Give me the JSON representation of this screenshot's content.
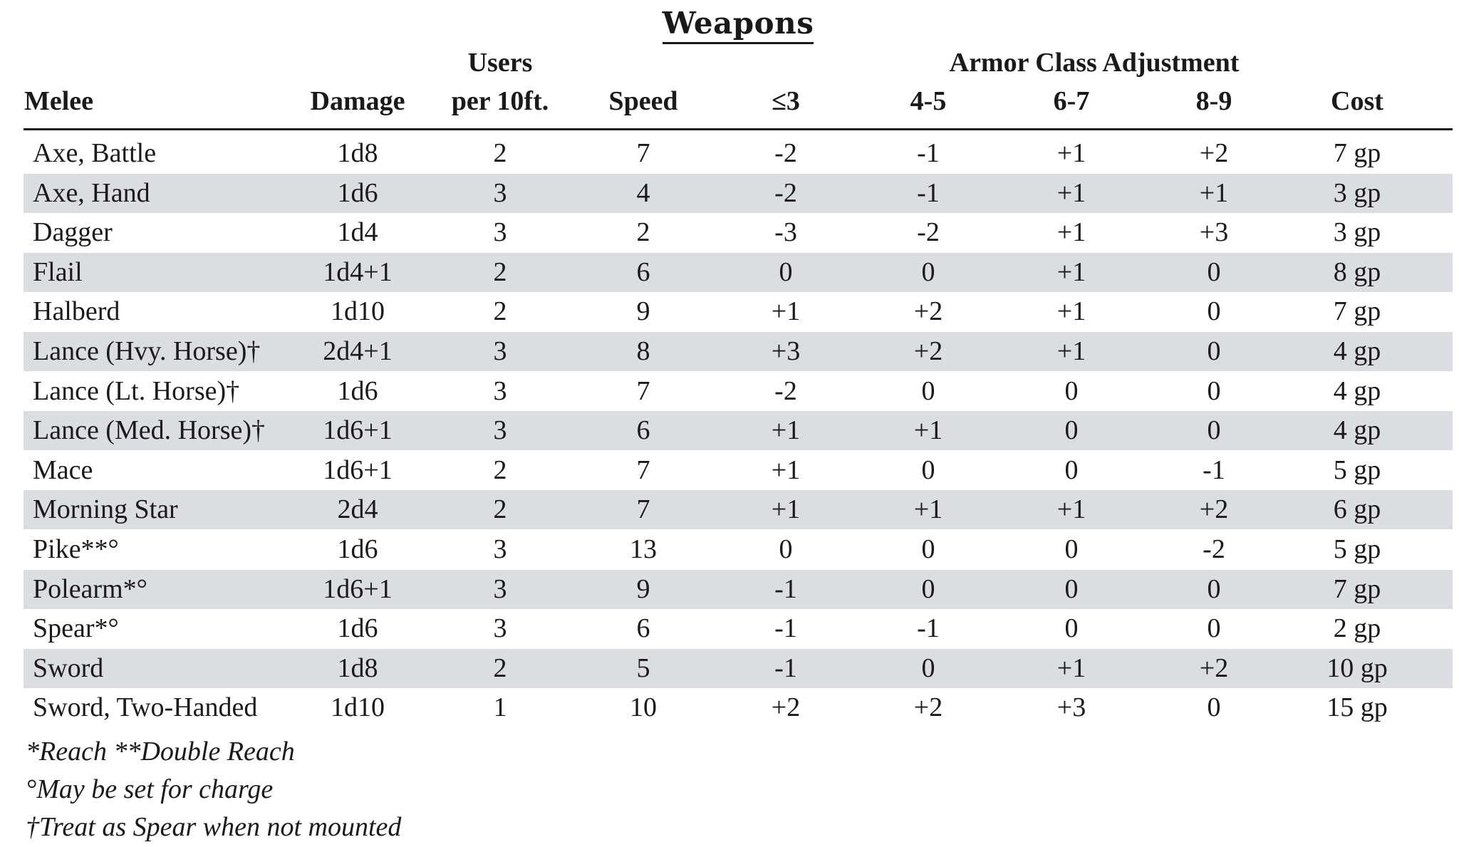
{
  "title": "Weapons",
  "header": {
    "group_users": "Users",
    "group_ac": "Armor Class Adjustment",
    "columns": [
      "Melee",
      "Damage",
      "per 10ft.",
      "Speed",
      "≤3",
      "4-5",
      "6-7",
      "8-9",
      "Cost"
    ]
  },
  "rows": [
    {
      "name": "Axe, Battle",
      "damage": "1d8",
      "users": "2",
      "speed": "7",
      "ac3": "-2",
      "ac45": "-1",
      "ac67": "+1",
      "ac89": "+2",
      "cost": "7 gp"
    },
    {
      "name": "Axe, Hand",
      "damage": "1d6",
      "users": "3",
      "speed": "4",
      "ac3": "-2",
      "ac45": "-1",
      "ac67": "+1",
      "ac89": "+1",
      "cost": "3 gp"
    },
    {
      "name": "Dagger",
      "damage": "1d4",
      "users": "3",
      "speed": "2",
      "ac3": "-3",
      "ac45": "-2",
      "ac67": "+1",
      "ac89": "+3",
      "cost": "3 gp"
    },
    {
      "name": "Flail",
      "damage": "1d4+1",
      "users": "2",
      "speed": "6",
      "ac3": "0",
      "ac45": "0",
      "ac67": "+1",
      "ac89": "0",
      "cost": "8 gp"
    },
    {
      "name": "Halberd",
      "damage": "1d10",
      "users": "2",
      "speed": "9",
      "ac3": "+1",
      "ac45": "+2",
      "ac67": "+1",
      "ac89": "0",
      "cost": "7 gp"
    },
    {
      "name": "Lance (Hvy. Horse)†",
      "damage": "2d4+1",
      "users": "3",
      "speed": "8",
      "ac3": "+3",
      "ac45": "+2",
      "ac67": "+1",
      "ac89": "0",
      "cost": "4 gp"
    },
    {
      "name": "Lance (Lt. Horse)†",
      "damage": "1d6",
      "users": "3",
      "speed": "7",
      "ac3": "-2",
      "ac45": "0",
      "ac67": "0",
      "ac89": "0",
      "cost": "4 gp"
    },
    {
      "name": "Lance (Med. Horse)†",
      "damage": "1d6+1",
      "users": "3",
      "speed": "6",
      "ac3": "+1",
      "ac45": "+1",
      "ac67": "0",
      "ac89": "0",
      "cost": "4 gp"
    },
    {
      "name": "Mace",
      "damage": "1d6+1",
      "users": "2",
      "speed": "7",
      "ac3": "+1",
      "ac45": "0",
      "ac67": "0",
      "ac89": "-1",
      "cost": "5 gp"
    },
    {
      "name": "Morning Star",
      "damage": "2d4",
      "users": "2",
      "speed": "7",
      "ac3": "+1",
      "ac45": "+1",
      "ac67": "+1",
      "ac89": "+2",
      "cost": "6 gp"
    },
    {
      "name": "Pike**°",
      "damage": "1d6",
      "users": "3",
      "speed": "13",
      "ac3": "0",
      "ac45": "0",
      "ac67": "0",
      "ac89": "-2",
      "cost": "5 gp"
    },
    {
      "name": "Polearm*°",
      "damage": "1d6+1",
      "users": "3",
      "speed": "9",
      "ac3": "-1",
      "ac45": "0",
      "ac67": "0",
      "ac89": "0",
      "cost": "7 gp"
    },
    {
      "name": "Spear*°",
      "damage": "1d6",
      "users": "3",
      "speed": "6",
      "ac3": "-1",
      "ac45": "-1",
      "ac67": "0",
      "ac89": "0",
      "cost": "2 gp"
    },
    {
      "name": "Sword",
      "damage": "1d8",
      "users": "2",
      "speed": "5",
      "ac3": "-1",
      "ac45": "0",
      "ac67": "+1",
      "ac89": "+2",
      "cost": "10 gp"
    },
    {
      "name": "Sword, Two-Handed",
      "damage": "1d10",
      "users": "1",
      "speed": "10",
      "ac3": "+2",
      "ac45": "+2",
      "ac67": "+3",
      "ac89": "0",
      "cost": "15 gp"
    }
  ],
  "footnotes": [
    "*Reach **Double Reach",
    "°May be set for charge",
    "†Treat as Spear when not mounted"
  ]
}
